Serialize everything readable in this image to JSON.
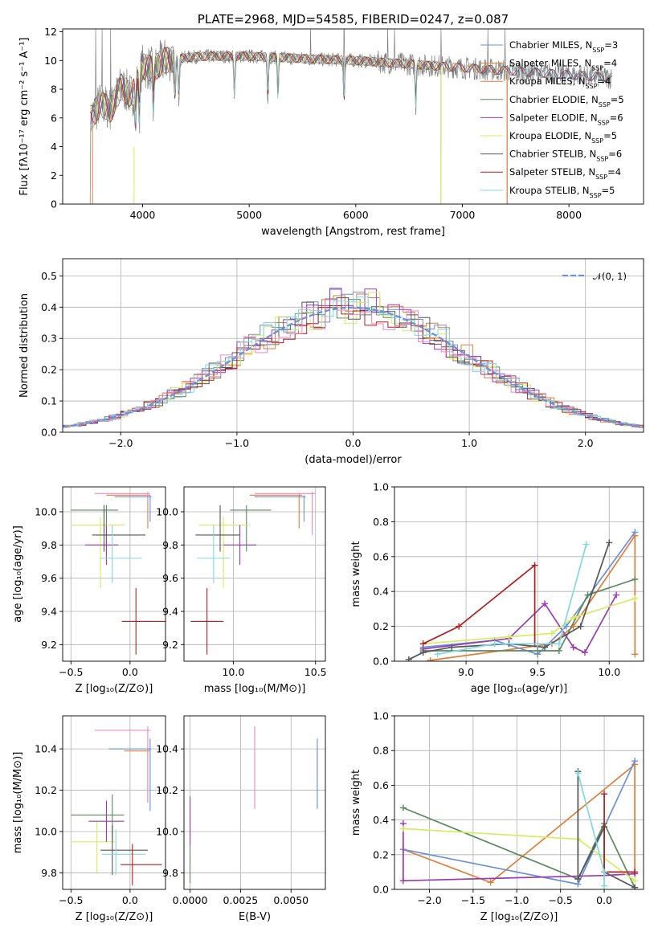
{
  "colors": {
    "chabrier_miles": "#6a8fdc",
    "salpeter_miles": "#e07d3a",
    "kroupa_miles": "#e07d3a",
    "chabrier_elodie": "#5a8a5e",
    "salpeter_elodie": "#9b3bb0",
    "kroupa_elodie": "#d7eb60",
    "chabrier_stelib": "#555555",
    "salpeter_stelib": "#b21f1f",
    "kroupa_stelib": "#80d8e0",
    "pink": "#ef86c3",
    "data": "#808080",
    "normal": "#6a8fdc"
  },
  "chart_data": [
    {
      "id": "spectrum",
      "type": "line",
      "title": "PLATE=2968, MJD=54585, FIBERID=0247, z=0.087",
      "xlabel": "wavelength [Angstrom, rest frame]",
      "ylabel": "Flux [fλ10⁻¹⁷ erg cm⁻² s⁻¹ A⁻¹]",
      "xlim": [
        3250,
        8700
      ],
      "ylim": [
        0,
        12.2
      ],
      "xticks": [
        4000,
        5000,
        6000,
        7000,
        8000
      ],
      "yticks": [
        0,
        2,
        4,
        6,
        8,
        10,
        12
      ],
      "grid": false,
      "legend_position": "top-right",
      "continuum": {
        "x": [
          3500,
          3600,
          3700,
          3800,
          3900,
          4000,
          4100,
          4200,
          4400,
          4600,
          4800,
          5000,
          5300,
          5600,
          6000,
          6400,
          6800,
          7200,
          7600,
          8000,
          8400
        ],
        "y": [
          5.8,
          7.0,
          6.6,
          8.2,
          7.5,
          9.6,
          9.4,
          10.0,
          10.2,
          10.3,
          10.3,
          10.3,
          10.2,
          10.1,
          10.0,
          9.8,
          9.6,
          9.4,
          9.2,
          9.0,
          8.8
        ]
      },
      "absorption_lines": [
        3934,
        3969,
        4101,
        4304,
        4340,
        4861,
        5175,
        5270,
        5890,
        6563
      ],
      "data_spikes": [
        3560,
        3620,
        3700,
        5577,
        5890,
        6300,
        6364,
        6800,
        7240,
        7400
      ],
      "legend": [
        "Chabrier MILES, N_SSP=3",
        "Salpeter MILES, N_SSP=4",
        "Kroupa MILES, N_SSP=4",
        "Chabrier ELODIE, N_SSP=5",
        "Salpeter ELODIE, N_SSP=6",
        "Kroupa ELODIE, N_SSP=5",
        "Chabrier STELIB, N_SSP=6",
        "Salpeter STELIB, N_SSP=4",
        "Kroupa STELIB, N_SSP=5"
      ]
    },
    {
      "id": "residuals",
      "type": "line",
      "xlabel": "(data-model)/error",
      "ylabel": "Normed distribution",
      "xlim": [
        -2.5,
        2.5
      ],
      "ylim": [
        0,
        0.555
      ],
      "xticks": [
        -2,
        -1,
        0,
        1,
        2
      ],
      "yticks": [
        0.0,
        0.1,
        0.2,
        0.3,
        0.4,
        0.5
      ],
      "grid": true,
      "legend_position": "top-right",
      "normal_label": "𝒩(0, 1)",
      "bin_width": 0.1
    },
    {
      "id": "age_vs_Z",
      "type": "scatter",
      "xlabel": "Z [log₁₀(Z/Z⊙)]",
      "ylabel": "age  [log₁₀(age/yr)]",
      "xlim": [
        -0.57,
        0.3
      ],
      "ylim": [
        9.1,
        10.15
      ],
      "xticks": [
        -0.5,
        0.0
      ],
      "yticks": [
        9.2,
        9.4,
        9.6,
        9.8,
        10.0
      ],
      "grid": true,
      "points": [
        {
          "color": "salpeter_miles",
          "x": 0.15,
          "y": 10.1,
          "xerr": [
            0.35,
            0.02
          ],
          "yerr": [
            0.2,
            0.01
          ]
        },
        {
          "color": "pink",
          "x": 0.15,
          "y": 10.11,
          "xerr": [
            0.45,
            0.02
          ],
          "yerr": [
            0.05,
            0.01
          ]
        },
        {
          "color": "chabrier_miles",
          "x": 0.17,
          "y": 10.09,
          "xerr": [
            0.3,
            0.01
          ],
          "yerr": [
            0.15,
            0.01
          ]
        },
        {
          "color": "chabrier_elodie",
          "x": -0.2,
          "y": 10.01,
          "xerr": [
            0.3,
            0.1
          ],
          "yerr": [
            0.25,
            0.03
          ]
        },
        {
          "color": "kroupa_elodie",
          "x": -0.25,
          "y": 9.92,
          "xerr": [
            0.25,
            0.2
          ],
          "yerr": [
            0.38,
            0.05
          ]
        },
        {
          "color": "salpeter_elodie",
          "x": -0.2,
          "y": 9.8,
          "xerr": [
            0.18,
            0.1
          ],
          "yerr": [
            0.12,
            0.12
          ]
        },
        {
          "color": "chabrier_stelib",
          "x": -0.22,
          "y": 9.86,
          "xerr": [
            0.1,
            0.35
          ],
          "yerr": [
            0.1,
            0.18
          ]
        },
        {
          "color": "kroupa_stelib",
          "x": -0.15,
          "y": 9.72,
          "xerr": [
            0.1,
            0.25
          ],
          "yerr": [
            0.15,
            0.2
          ]
        },
        {
          "color": "salpeter_stelib",
          "x": 0.05,
          "y": 9.34,
          "xerr": [
            0.12,
            0.25
          ],
          "yerr": [
            0.2,
            0.2
          ]
        }
      ]
    },
    {
      "id": "age_vs_mass",
      "type": "scatter",
      "xlabel": "mass [log₁₀(M/M⊙)]",
      "xlim": [
        9.7,
        10.56
      ],
      "ylim": [
        9.1,
        10.15
      ],
      "xticks": [
        10.0,
        10.5
      ],
      "yticks": [
        9.2,
        9.4,
        9.6,
        9.8,
        10.0
      ],
      "grid": true,
      "points": [
        {
          "color": "salpeter_miles",
          "x": 10.4,
          "y": 10.1,
          "xerr": [
            0.3,
            0.02
          ],
          "yerr": [
            0.2,
            0.01
          ]
        },
        {
          "color": "pink",
          "x": 10.48,
          "y": 10.11,
          "xerr": [
            0.35,
            0.02
          ],
          "yerr": [
            0.25,
            0.01
          ]
        },
        {
          "color": "chabrier_miles",
          "x": 10.43,
          "y": 10.09,
          "xerr": [
            0.3,
            0.01
          ],
          "yerr": [
            0.15,
            0.01
          ]
        },
        {
          "color": "chabrier_elodie",
          "x": 10.08,
          "y": 10.01,
          "xerr": [
            0.1,
            0.15
          ],
          "yerr": [
            0.25,
            0.03
          ]
        },
        {
          "color": "kroupa_elodie",
          "x": 9.94,
          "y": 9.92,
          "xerr": [
            0.15,
            0.15
          ],
          "yerr": [
            0.38,
            0.05
          ]
        },
        {
          "color": "salpeter_elodie",
          "x": 10.04,
          "y": 9.8,
          "xerr": [
            0.1,
            0.1
          ],
          "yerr": [
            0.12,
            0.12
          ]
        },
        {
          "color": "chabrier_stelib",
          "x": 9.92,
          "y": 9.86,
          "xerr": [
            0.15,
            0.12
          ],
          "yerr": [
            0.1,
            0.18
          ]
        },
        {
          "color": "kroupa_stelib",
          "x": 9.88,
          "y": 9.72,
          "xerr": [
            0.1,
            0.1
          ],
          "yerr": [
            0.15,
            0.2
          ]
        },
        {
          "color": "salpeter_stelib",
          "x": 9.84,
          "y": 9.34,
          "xerr": [
            0.1,
            0.1
          ],
          "yerr": [
            0.2,
            0.2
          ]
        }
      ]
    },
    {
      "id": "weight_vs_age",
      "type": "line",
      "xlabel": "age  [log₁₀(age/yr)]",
      "ylabel": "mass weight",
      "xlim": [
        8.5,
        10.24
      ],
      "ylim": [
        0,
        1.0
      ],
      "xticks": [
        9.0,
        9.5,
        10.0
      ],
      "yticks": [
        0.0,
        0.2,
        0.4,
        0.6,
        0.8,
        1.0
      ],
      "grid": true,
      "series": [
        {
          "color": "salpeter_miles",
          "x": [
            8.75,
            9.6,
            9.75,
            10.18,
            10.18
          ],
          "y": [
            0.005,
            0.1,
            0.2,
            0.72,
            0.04
          ]
        },
        {
          "color": "chabrier_miles",
          "x": [
            8.7,
            9.2,
            9.5,
            9.7,
            10.18
          ],
          "y": [
            0.08,
            0.12,
            0.04,
            0.2,
            0.74
          ]
        },
        {
          "color": "chabrier_elodie",
          "x": [
            8.7,
            9.5,
            9.65,
            9.85,
            10.18
          ],
          "y": [
            0.06,
            0.06,
            0.06,
            0.38,
            0.47
          ]
        },
        {
          "color": "salpeter_elodie",
          "x": [
            8.7,
            9.3,
            9.55,
            9.75,
            9.83,
            10.05
          ],
          "y": [
            0.07,
            0.13,
            0.33,
            0.08,
            0.05,
            0.38
          ]
        },
        {
          "color": "kroupa_elodie",
          "x": [
            8.7,
            9.3,
            9.6,
            9.75,
            10.18
          ],
          "y": [
            0.1,
            0.14,
            0.16,
            0.25,
            0.36
          ]
        },
        {
          "color": "chabrier_stelib",
          "x": [
            8.6,
            8.7,
            8.9,
            9.3,
            9.55,
            9.8,
            10.0
          ],
          "y": [
            0.01,
            0.05,
            0.08,
            0.1,
            0.08,
            0.2,
            0.68
          ]
        },
        {
          "color": "salpeter_stelib",
          "x": [
            8.7,
            8.95,
            9.48,
            9.48
          ],
          "y": [
            0.1,
            0.2,
            0.55,
            0.1
          ]
        },
        {
          "color": "kroupa_stelib",
          "x": [
            8.8,
            9.2,
            9.5,
            9.65,
            9.84
          ],
          "y": [
            0.04,
            0.1,
            0.1,
            0.1,
            0.67
          ]
        }
      ]
    },
    {
      "id": "mass_vs_Z",
      "type": "scatter",
      "xlabel": "Z [log₁₀(Z/Z⊙)]",
      "ylabel": "mass [log₁₀(M/M⊙)]",
      "xlim": [
        -0.57,
        0.3
      ],
      "ylim": [
        9.72,
        10.56
      ],
      "xticks": [
        -0.5,
        0.0
      ],
      "yticks": [
        9.8,
        10.0,
        10.2,
        10.4
      ],
      "grid": true,
      "points": [
        {
          "color": "salpeter_miles",
          "x": 0.15,
          "y": 10.39,
          "xerr": [
            0.2,
            0.02
          ],
          "yerr": [
            0.25,
            0.02
          ]
        },
        {
          "color": "pink",
          "x": 0.15,
          "y": 10.49,
          "xerr": [
            0.45,
            0.02
          ],
          "yerr": [
            0.35,
            0.02
          ]
        },
        {
          "color": "chabrier_miles",
          "x": 0.17,
          "y": 10.4,
          "xerr": [
            0.35,
            0.01
          ],
          "yerr": [
            0.3,
            0.05
          ]
        },
        {
          "color": "chabrier_elodie",
          "x": -0.15,
          "y": 10.08,
          "xerr": [
            0.35,
            0.1
          ],
          "yerr": [
            0.12,
            0.1
          ]
        },
        {
          "color": "kroupa_elodie",
          "x": -0.28,
          "y": 9.95,
          "xerr": [
            0.22,
            0.15
          ],
          "yerr": [
            0.15,
            0.1
          ]
        },
        {
          "color": "salpeter_elodie",
          "x": -0.2,
          "y": 10.05,
          "xerr": [
            0.15,
            0.15
          ],
          "yerr": [
            0.1,
            0.1
          ]
        },
        {
          "color": "chabrier_stelib",
          "x": -0.15,
          "y": 9.91,
          "xerr": [
            0.1,
            0.3
          ],
          "yerr": [
            0.12,
            0.12
          ]
        },
        {
          "color": "kroupa_stelib",
          "x": -0.12,
          "y": 9.89,
          "xerr": [
            0.12,
            0.25
          ],
          "yerr": [
            0.1,
            0.12
          ]
        },
        {
          "color": "salpeter_stelib",
          "x": 0.02,
          "y": 9.84,
          "xerr": [
            0.1,
            0.25
          ],
          "yerr": [
            0.1,
            0.1
          ]
        }
      ]
    },
    {
      "id": "mass_vs_ebv",
      "type": "scatter",
      "xlabel": "E(B-V)",
      "xlim": [
        -0.0003,
        0.0067
      ],
      "ylim": [
        9.72,
        10.56
      ],
      "xticks": [
        0.0,
        0.0025,
        0.005
      ],
      "xtick_labels": [
        "0.0000",
        "0.0025",
        "0.0050"
      ],
      "yticks": [
        9.8,
        10.0,
        10.2,
        10.4
      ],
      "grid": true,
      "points": [
        {
          "color": "chabrier_elodie",
          "x": 0.0,
          "y": 9.95,
          "xerr": [
            0,
            0
          ],
          "yerr": [
            0.2,
            0.2
          ]
        },
        {
          "color": "salpeter_elodie",
          "x": 0.0,
          "y": 10.05,
          "xerr": [
            0,
            0
          ],
          "yerr": [
            0.12,
            0.12
          ]
        },
        {
          "color": "pink",
          "x": 0.0032,
          "y": 10.31,
          "xerr": [
            0,
            0
          ],
          "yerr": [
            0.2,
            0.2
          ]
        },
        {
          "color": "salpeter_miles",
          "x": 0.0063,
          "y": 10.3,
          "xerr": [
            0,
            0
          ],
          "yerr": [
            0.1,
            0.1
          ]
        },
        {
          "color": "chabrier_miles",
          "x": 0.0063,
          "y": 10.28,
          "xerr": [
            0,
            0
          ],
          "yerr": [
            0.17,
            0.17
          ]
        }
      ]
    },
    {
      "id": "weight_vs_Z",
      "type": "line",
      "xlabel": "Z [log₁₀(Z/Z⊙)]",
      "ylabel": "mass weight",
      "xlim": [
        -2.4,
        0.45
      ],
      "ylim": [
        0,
        1.0
      ],
      "xticks": [
        -2.0,
        -1.5,
        -1.0,
        -0.5,
        0.0
      ],
      "yticks": [
        0.0,
        0.2,
        0.4,
        0.6,
        0.8,
        1.0
      ],
      "grid": true,
      "series": [
        {
          "color": "salpeter_miles",
          "x": [
            -2.3,
            -1.3,
            0.35,
            0.35
          ],
          "y": [
            0.23,
            0.04,
            0.72,
            0.1
          ]
        },
        {
          "color": "chabrier_miles",
          "x": [
            -2.3,
            -0.3,
            0.35
          ],
          "y": [
            0.23,
            0.03,
            0.74
          ]
        },
        {
          "color": "chabrier_elodie",
          "x": [
            -2.3,
            -0.3,
            0.0,
            0.35
          ],
          "y": [
            0.47,
            0.06,
            0.38,
            0.01
          ]
        },
        {
          "color": "salpeter_elodie",
          "x": [
            -2.3,
            -2.3,
            0.0,
            0.35
          ],
          "y": [
            0.38,
            0.05,
            0.08,
            0.09
          ]
        },
        {
          "color": "kroupa_elodie",
          "x": [
            -2.3,
            -0.3,
            0.35
          ],
          "y": [
            0.35,
            0.29,
            0.05
          ]
        },
        {
          "color": "chabrier_stelib",
          "x": [
            -0.3,
            -0.3,
            0.0,
            0.0,
            0.35
          ],
          "y": [
            0.68,
            0.06,
            0.36,
            0.1,
            0.01
          ]
        },
        {
          "color": "salpeter_stelib",
          "x": [
            0.0,
            0.0,
            0.35
          ],
          "y": [
            0.55,
            0.1,
            0.1
          ]
        },
        {
          "color": "kroupa_stelib",
          "x": [
            -0.3,
            0.0,
            0.0
          ],
          "y": [
            0.67,
            0.1,
            0.02
          ]
        }
      ]
    }
  ]
}
